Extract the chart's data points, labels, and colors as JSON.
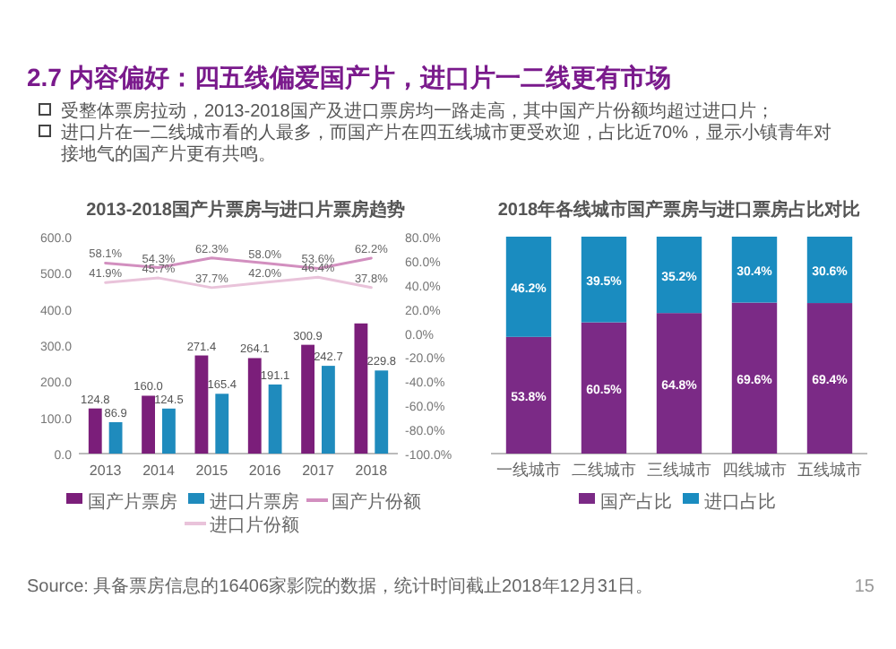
{
  "chart_data": [
    {
      "type": "other",
      "title": "2.7 内容偏好：四五线偏爱国产片，进口片一二线更有市场",
      "annotations": [
        "受整体票房拉动，2013-2018国产及进口票房均一路走高，其中国产片份额均超过进口片；",
        "进口片在一二线城市看的人最多，而国产片在四五线城市更受欢迎，占比近70%，显示小镇青年对接地气的国产片更有共鸣。"
      ]
    },
    {
      "type": "bar",
      "title": "2013-2018国产片票房与进口片票房趋势",
      "categories": [
        "2013",
        "2014",
        "2015",
        "2016",
        "2017",
        "2018"
      ],
      "series": [
        {
          "name": "国产片票房",
          "color": "#7b1e7a",
          "values": [
            124.8,
            160.0,
            271.4,
            264.1,
            300.9,
            360
          ],
          "value_labels": [
            "124.8",
            "160.0",
            "271.4",
            "264.1",
            "300.9",
            null
          ]
        },
        {
          "name": "进口片票房",
          "color": "#1f8bbd",
          "values": [
            86.9,
            124.5,
            165.4,
            191.1,
            242.7,
            229.8
          ],
          "value_labels": [
            "86.9",
            "124.5",
            "165.4",
            "191.1",
            "242.7",
            "229.8"
          ]
        },
        {
          "name": "国产片份额",
          "type": "line",
          "axis": "y2",
          "color": "#d28fbf",
          "values": [
            58.1,
            54.3,
            62.3,
            58.0,
            53.6,
            62.2
          ],
          "value_labels": [
            "58.1%",
            "54.3%",
            "62.3%",
            "58.0%",
            "53.6%",
            "62.2%"
          ]
        },
        {
          "name": "进口片份额",
          "type": "line",
          "axis": "y2",
          "color": "#e9c3da",
          "values": [
            41.9,
            45.7,
            37.7,
            42.0,
            46.4,
            37.8
          ],
          "value_labels": [
            "41.9%",
            "45.7%",
            "37.7%",
            "42.0%",
            "46.4%",
            "37.8%"
          ]
        }
      ],
      "ylim": [
        0,
        600
      ],
      "yticks": [
        {
          "value": 0,
          "label": "0.0"
        },
        {
          "value": 100,
          "label": "100.0"
        },
        {
          "value": 200,
          "label": "200.0"
        },
        {
          "value": 300,
          "label": "300.0"
        },
        {
          "value": 400,
          "label": "400.0"
        },
        {
          "value": 500,
          "label": "500.0"
        },
        {
          "value": 600,
          "label": "600.0"
        }
      ],
      "y2lim": [
        -100,
        80
      ],
      "y2ticks": [
        {
          "value": -100,
          "label": "-100.0%"
        },
        {
          "value": -80,
          "label": "-80.0%"
        },
        {
          "value": -60,
          "label": "-60.0%"
        },
        {
          "value": -40,
          "label": "-40.0%"
        },
        {
          "value": -20,
          "label": "-20.0%"
        },
        {
          "value": 0,
          "label": "0.0%"
        },
        {
          "value": 20,
          "label": "20.0%"
        },
        {
          "value": 40,
          "label": "40.0%"
        },
        {
          "value": 60,
          "label": "60.0%"
        },
        {
          "value": 80,
          "label": "80.0%"
        }
      ],
      "legend": "bottom"
    },
    {
      "type": "bar",
      "stacked": true,
      "title": "2018年各线城市国产票房与进口票房占比对比",
      "categories": [
        "一线城市",
        "二线城市",
        "三线城市",
        "四线城市",
        "五线城市"
      ],
      "series": [
        {
          "name": "国产占比",
          "color": "#7b2a86",
          "values": [
            53.8,
            60.5,
            64.8,
            69.6,
            69.4
          ],
          "value_labels": [
            "53.8%",
            "60.5%",
            "64.8%",
            "69.6%",
            "69.4%"
          ]
        },
        {
          "name": "进口占比",
          "color": "#1a8cc0",
          "values": [
            46.2,
            39.5,
            35.2,
            30.4,
            30.6
          ],
          "value_labels": [
            "46.2%",
            "39.5%",
            "35.2%",
            "30.4%",
            "30.6%"
          ]
        }
      ],
      "legend": "bottom",
      "annotations": [
        "Source: 具备票房信息的16406家影院的数据，统计时间截止2018年12月31日。",
        "15"
      ]
    }
  ]
}
